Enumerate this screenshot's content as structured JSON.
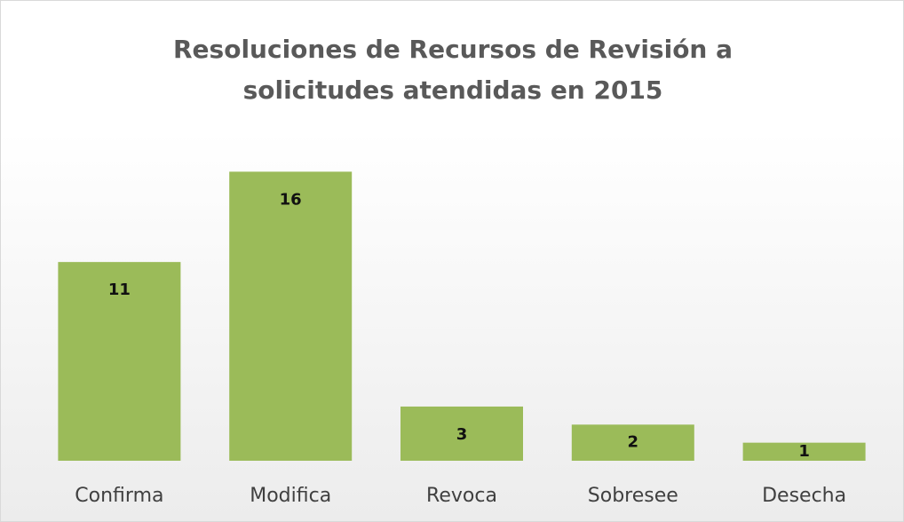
{
  "chart_data": {
    "type": "bar",
    "title": "Resoluciones de Recursos de Revisión a solicitudes atendidas en 2015",
    "categories": [
      "Confirma",
      "Modifica",
      "Revoca",
      "Sobresee",
      "Desecha"
    ],
    "values": [
      11,
      16,
      3,
      2,
      1
    ],
    "color": "#9bbb59"
  }
}
